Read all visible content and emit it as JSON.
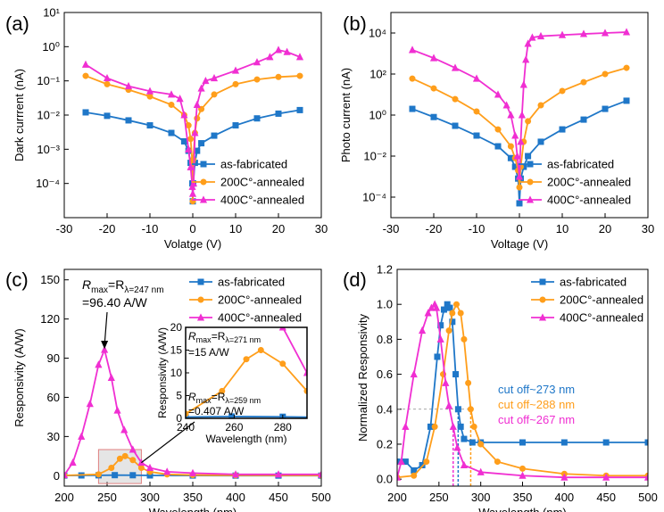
{
  "panels": [
    {
      "label": "(a)",
      "type": "line",
      "xlabel": "Volatge (V)",
      "ylabel": "Dark currrent (nA)",
      "xscale": "linear",
      "yscale": "log",
      "xlim": [
        -30,
        30
      ],
      "ylim": [
        1e-05,
        10
      ],
      "xticks": [
        -30,
        -20,
        -10,
        0,
        10,
        20,
        30
      ],
      "yticks": [
        1e-05,
        0.0001,
        0.001,
        0.01,
        0.1,
        1,
        10
      ],
      "ytick_labels": [
        "",
        "10⁻⁴",
        "10⁻³",
        "10⁻²",
        "10⁻¹",
        "10⁰",
        "10¹"
      ],
      "legend_position": "bottom-right",
      "series": [
        {
          "name": "as-fabricated",
          "color": "#1f77c8",
          "marker": "square",
          "x": [
            -25,
            -20,
            -15,
            -10,
            -5,
            -2,
            -1,
            -0.5,
            -0.1,
            0,
            0.1,
            0.5,
            1,
            2,
            5,
            10,
            15,
            20,
            25
          ],
          "y": [
            0.012,
            0.0095,
            0.007,
            0.005,
            0.003,
            0.0017,
            0.0009,
            0.0004,
            0.0001,
            3e-05,
            0.0001,
            0.0004,
            0.0009,
            0.0015,
            0.0025,
            0.005,
            0.008,
            0.011,
            0.014
          ]
        },
        {
          "name": "200C°-annealed",
          "color": "#ff9e1b",
          "marker": "circle",
          "x": [
            -25,
            -20,
            -15,
            -10,
            -5,
            -2,
            -1,
            -0.5,
            -0.1,
            0,
            0.1,
            0.5,
            1,
            2,
            5,
            10,
            15,
            20,
            25
          ],
          "y": [
            0.14,
            0.08,
            0.055,
            0.035,
            0.02,
            0.01,
            0.005,
            0.002,
            0.0004,
            3e-05,
            0.0005,
            0.003,
            0.008,
            0.015,
            0.04,
            0.08,
            0.11,
            0.13,
            0.14
          ]
        },
        {
          "name": "400C°-annealed",
          "color": "#f02fd2",
          "marker": "triangle",
          "x": [
            -25,
            -20,
            -15,
            -10,
            -5,
            -3,
            -2,
            -1,
            -0.5,
            -0.1,
            0,
            0.2,
            0.5,
            1,
            2,
            3,
            5,
            10,
            15,
            18,
            20,
            22,
            25
          ],
          "y": [
            0.3,
            0.12,
            0.07,
            0.05,
            0.04,
            0.03,
            0.01,
            0.001,
            0.0003,
            8e-05,
            5e-05,
            0.0001,
            0.003,
            0.02,
            0.06,
            0.1,
            0.12,
            0.2,
            0.35,
            0.5,
            0.8,
            0.7,
            0.5
          ]
        }
      ]
    },
    {
      "label": "(b)",
      "type": "line",
      "xlabel": "Voltage (V)",
      "ylabel": "Photo current (nA)",
      "xscale": "linear",
      "yscale": "log",
      "xlim": [
        -30,
        30
      ],
      "ylim": [
        1e-05,
        100000
      ],
      "xticks": [
        -30,
        -20,
        -10,
        0,
        10,
        20,
        30
      ],
      "yticks": [
        0.0001,
        0.01,
        1,
        100,
        10000
      ],
      "ytick_labels": [
        "10⁻⁴",
        "10⁻²",
        "10⁰",
        "10²",
        "10⁴"
      ],
      "legend_position": "bottom-right",
      "series": [
        {
          "name": "as-fabricated",
          "color": "#1f77c8",
          "marker": "square",
          "x": [
            -25,
            -20,
            -15,
            -10,
            -5,
            -2,
            -1,
            -0.3,
            0,
            0.3,
            1,
            2,
            5,
            10,
            15,
            20,
            25
          ],
          "y": [
            2,
            0.8,
            0.3,
            0.1,
            0.03,
            0.008,
            0.003,
            0.0008,
            5e-05,
            0.0008,
            0.003,
            0.01,
            0.05,
            0.2,
            0.6,
            2,
            5
          ]
        },
        {
          "name": "200C°-annealed",
          "color": "#ff9e1b",
          "marker": "circle",
          "x": [
            -25,
            -20,
            -15,
            -10,
            -5,
            -2,
            -1,
            -0.3,
            0,
            0.3,
            1,
            2,
            5,
            10,
            15,
            20,
            25
          ],
          "y": [
            60,
            20,
            6,
            1.5,
            0.2,
            0.03,
            0.008,
            0.002,
            0.0003,
            0.003,
            0.05,
            0.5,
            3,
            15,
            40,
            100,
            200
          ]
        },
        {
          "name": "400C°-annealed",
          "color": "#f02fd2",
          "marker": "triangle",
          "x": [
            -25,
            -20,
            -15,
            -10,
            -5,
            -3,
            -2,
            -1,
            -0.5,
            0,
            0.3,
            0.6,
            1,
            1.5,
            2,
            3,
            5,
            10,
            15,
            20,
            25
          ],
          "y": [
            1500,
            600,
            200,
            60,
            10,
            3,
            1,
            0.1,
            0.01,
            0.001,
            0.05,
            1,
            30,
            500,
            3000,
            6000,
            7000,
            8000,
            9000,
            10000,
            11000
          ]
        }
      ]
    },
    {
      "label": "(c)",
      "type": "line",
      "xlabel": "Wavelength (nm)",
      "ylabel": "Responsivity (A/W)",
      "xscale": "linear",
      "yscale": "linear",
      "xlim": [
        200,
        500
      ],
      "ylim": [
        -8,
        158
      ],
      "xticks": [
        200,
        250,
        300,
        350,
        400,
        450,
        500
      ],
      "yticks": [
        0,
        30,
        60,
        90,
        120,
        150
      ],
      "ytick_labels": [
        "0",
        "30",
        "60",
        "90",
        "120",
        "150"
      ],
      "legend_position": "top-right",
      "series": [
        {
          "name": "as-fabricated",
          "color": "#1f77c8",
          "marker": "square",
          "x": [
            200,
            220,
            240,
            259,
            280,
            300,
            350,
            400,
            450,
            500
          ],
          "y": [
            0.1,
            0.2,
            0.3,
            0.407,
            0.35,
            0.2,
            0.1,
            0.05,
            0.05,
            0.05
          ]
        },
        {
          "name": "200C°-annealed",
          "color": "#ff9e1b",
          "marker": "circle",
          "x": [
            200,
            240,
            255,
            265,
            271,
            280,
            290,
            300,
            320,
            350,
            400,
            500
          ],
          "y": [
            0.2,
            1,
            6,
            13,
            15,
            12,
            6,
            3,
            1,
            0.5,
            0.3,
            0.2
          ]
        },
        {
          "name": "400C°-annealed",
          "color": "#f02fd2",
          "marker": "triangle",
          "x": [
            200,
            210,
            220,
            230,
            240,
            247,
            255,
            262,
            270,
            280,
            290,
            300,
            320,
            350,
            400,
            450,
            500
          ],
          "y": [
            0.5,
            10,
            30,
            55,
            85,
            96.4,
            75,
            50,
            35,
            20,
            10,
            6,
            3,
            2,
            1,
            1,
            1
          ]
        }
      ],
      "annotations": [
        {
          "text": "R",
          "sub": "max",
          "mid": "=R",
          "sub2": "λ=247 nm"
        },
        {
          "text": "=96.40 A/W"
        }
      ],
      "inset": {
        "xlabel": "Wavelength (nm)",
        "ylabel": "Responsivity (A/W)",
        "xlim": [
          240,
          290
        ],
        "ylim": [
          0,
          20
        ],
        "xticks": [
          240,
          260,
          280
        ],
        "yticks": [
          0,
          5,
          10,
          15,
          20
        ],
        "annotation_top": {
          "sub2": "λ=271 nm",
          "value": "=15 A/W"
        },
        "annotation_bottom": {
          "sub2": "λ=259 nm",
          "value": "=0.407 A/W"
        }
      }
    },
    {
      "label": "(d)",
      "type": "line",
      "xlabel": "Wavelength (nm)",
      "ylabel": "Normalized Responsivity",
      "xscale": "linear",
      "yscale": "linear",
      "xlim": [
        200,
        500
      ],
      "ylim": [
        -0.04,
        1.2
      ],
      "xticks": [
        200,
        250,
        300,
        350,
        400,
        450,
        500
      ],
      "yticks": [
        0,
        0.2,
        0.4,
        0.6,
        0.8,
        1.0,
        1.2
      ],
      "ytick_labels": [
        "0.0",
        "0.2",
        "0.4",
        "0.6",
        "0.8",
        "1.0",
        "1.2"
      ],
      "legend_position": "top-right",
      "series": [
        {
          "name": "as-fabricated",
          "color": "#1f77c8",
          "marker": "square",
          "x": [
            200,
            210,
            220,
            230,
            240,
            248,
            252,
            256,
            260,
            263,
            266,
            270,
            273,
            276,
            280,
            290,
            300,
            350,
            400,
            450,
            500
          ],
          "y": [
            0.1,
            0.1,
            0.05,
            0.08,
            0.3,
            0.7,
            0.88,
            0.97,
            1.0,
            0.98,
            0.9,
            0.6,
            0.4,
            0.3,
            0.23,
            0.21,
            0.21,
            0.21,
            0.21,
            0.21,
            0.21
          ]
        },
        {
          "name": "200C°-annealed",
          "color": "#ff9e1b",
          "marker": "circle",
          "x": [
            200,
            220,
            235,
            245,
            255,
            262,
            266,
            271,
            276,
            280,
            285,
            288,
            292,
            300,
            320,
            350,
            400,
            450,
            500
          ],
          "y": [
            0.01,
            0.02,
            0.1,
            0.3,
            0.6,
            0.85,
            0.95,
            1.0,
            0.95,
            0.8,
            0.55,
            0.4,
            0.3,
            0.2,
            0.1,
            0.06,
            0.03,
            0.02,
            0.02
          ]
        },
        {
          "name": "400C°-annealed",
          "color": "#f02fd2",
          "marker": "triangle",
          "x": [
            200,
            205,
            210,
            220,
            230,
            237,
            241,
            245,
            247,
            252,
            258,
            262,
            267,
            272,
            280,
            300,
            350,
            400,
            450,
            500
          ],
          "y": [
            0.01,
            0.1,
            0.3,
            0.6,
            0.85,
            0.95,
            0.98,
            1.0,
            0.98,
            0.8,
            0.55,
            0.42,
            0.3,
            0.18,
            0.08,
            0.04,
            0.02,
            0.01,
            0.01,
            0.01
          ]
        }
      ],
      "cutoffs": [
        {
          "text": "cut off~273 nm",
          "color": "#1f77c8",
          "x": 273,
          "y": 0.4
        },
        {
          "text": "cut off~288 nm",
          "color": "#ff9e1b",
          "x": 288,
          "y": 0.4
        },
        {
          "text": "cut off~267 nm",
          "color": "#f02fd2",
          "x": 267,
          "y": 0.3
        }
      ]
    }
  ]
}
